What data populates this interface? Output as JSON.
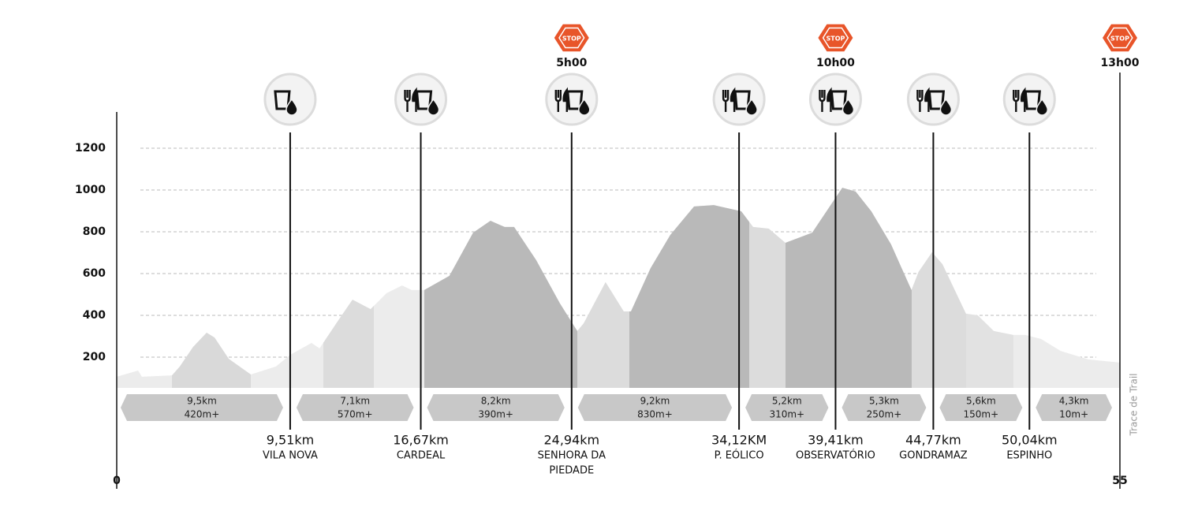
{
  "chart_data": {
    "type": "area",
    "x": [
      0,
      1.17,
      1.38,
      3.03,
      3.46,
      4.19,
      4.93,
      5.36,
      6.14,
      7.35,
      8.73,
      9.51,
      10.68,
      11.12,
      12.19,
      12.93,
      13.92,
      14.79,
      15.65,
      16.17,
      16.86,
      18.24,
      19.54,
      20.49,
      21.27,
      21.79,
      23.0,
      24.3,
      25.25,
      25.6,
      26.8,
      27.8,
      28.19,
      29.27,
      30.35,
      31.65,
      32.73,
      34.24,
      34.89,
      35.75,
      36.66,
      38.13,
      39.78,
      40.51,
      41.37,
      42.45,
      43.57,
      43.96,
      44.7,
      45.27,
      46.56,
      47.21,
      48.08,
      49.16,
      49.81,
      50.67,
      51.75,
      53.26,
      55
    ],
    "values": [
      106,
      136,
      106,
      113,
      155,
      249,
      317,
      294,
      192,
      117,
      155,
      211,
      268,
      242,
      381,
      475,
      430,
      506,
      543,
      521,
      521,
      589,
      796,
      853,
      823,
      823,
      664,
      457,
      325,
      362,
      559,
      419,
      419,
      626,
      785,
      921,
      928,
      898,
      823,
      815,
      747,
      796,
      1011,
      993,
      898,
      740,
      521,
      608,
      702,
      645,
      408,
      400,
      325,
      306,
      306,
      287,
      230,
      189,
      174
    ],
    "color": "#ececec",
    "xlim": [
      0,
      55
    ],
    "xticks": [
      0,
      55
    ],
    "ylim": [
      0,
      1200
    ],
    "yticks": [
      200,
      400,
      600,
      800,
      1000,
      1200
    ],
    "grid": true,
    "checkpoints": [
      {
        "km": {
          "value": 9.51,
          "label": "9,51km"
        },
        "name": [
          "VILA NOVA"
        ]
      },
      {
        "km": {
          "value": 16.67,
          "label": "16,67km"
        },
        "name": [
          "CARDEAL"
        ]
      },
      {
        "km": {
          "value": 24.94,
          "label": "24,94km"
        },
        "name": [
          "SENHORA DA",
          "PIEDADE"
        ]
      },
      {
        "km": {
          "value": 34.12,
          "label": "34,12KM"
        },
        "name": [
          "P. EÓLICO"
        ]
      },
      {
        "km": {
          "value": 39.41,
          "label": "39,41km"
        },
        "name": [
          "OBSERVATÓRIO"
        ]
      },
      {
        "km": {
          "value": 44.77,
          "label": "44,77km"
        },
        "name": [
          "GONDRAMAZ"
        ]
      },
      {
        "km": {
          "value": 50.04,
          "label": "50,04km"
        },
        "name": [
          "ESPINHO"
        ]
      }
    ],
    "segments": [
      {
        "distance": "9,5km",
        "gain": "420m+"
      },
      {
        "distance": "7,1km",
        "gain": "570m+"
      },
      {
        "distance": "8,2km",
        "gain": "390m+"
      },
      {
        "distance": "9,2km",
        "gain": "830m+"
      },
      {
        "distance": "5,2km",
        "gain": "310m+"
      },
      {
        "distance": "5,3km",
        "gain": "250m+"
      },
      {
        "distance": "5,6km",
        "gain": "150m+"
      },
      {
        "distance": "4,3km",
        "gain": "10m+"
      }
    ],
    "stop_label": "STOP",
    "stops": [
      "5h00",
      "10h00",
      "13h00"
    ],
    "credit": "Trace de Trail"
  }
}
